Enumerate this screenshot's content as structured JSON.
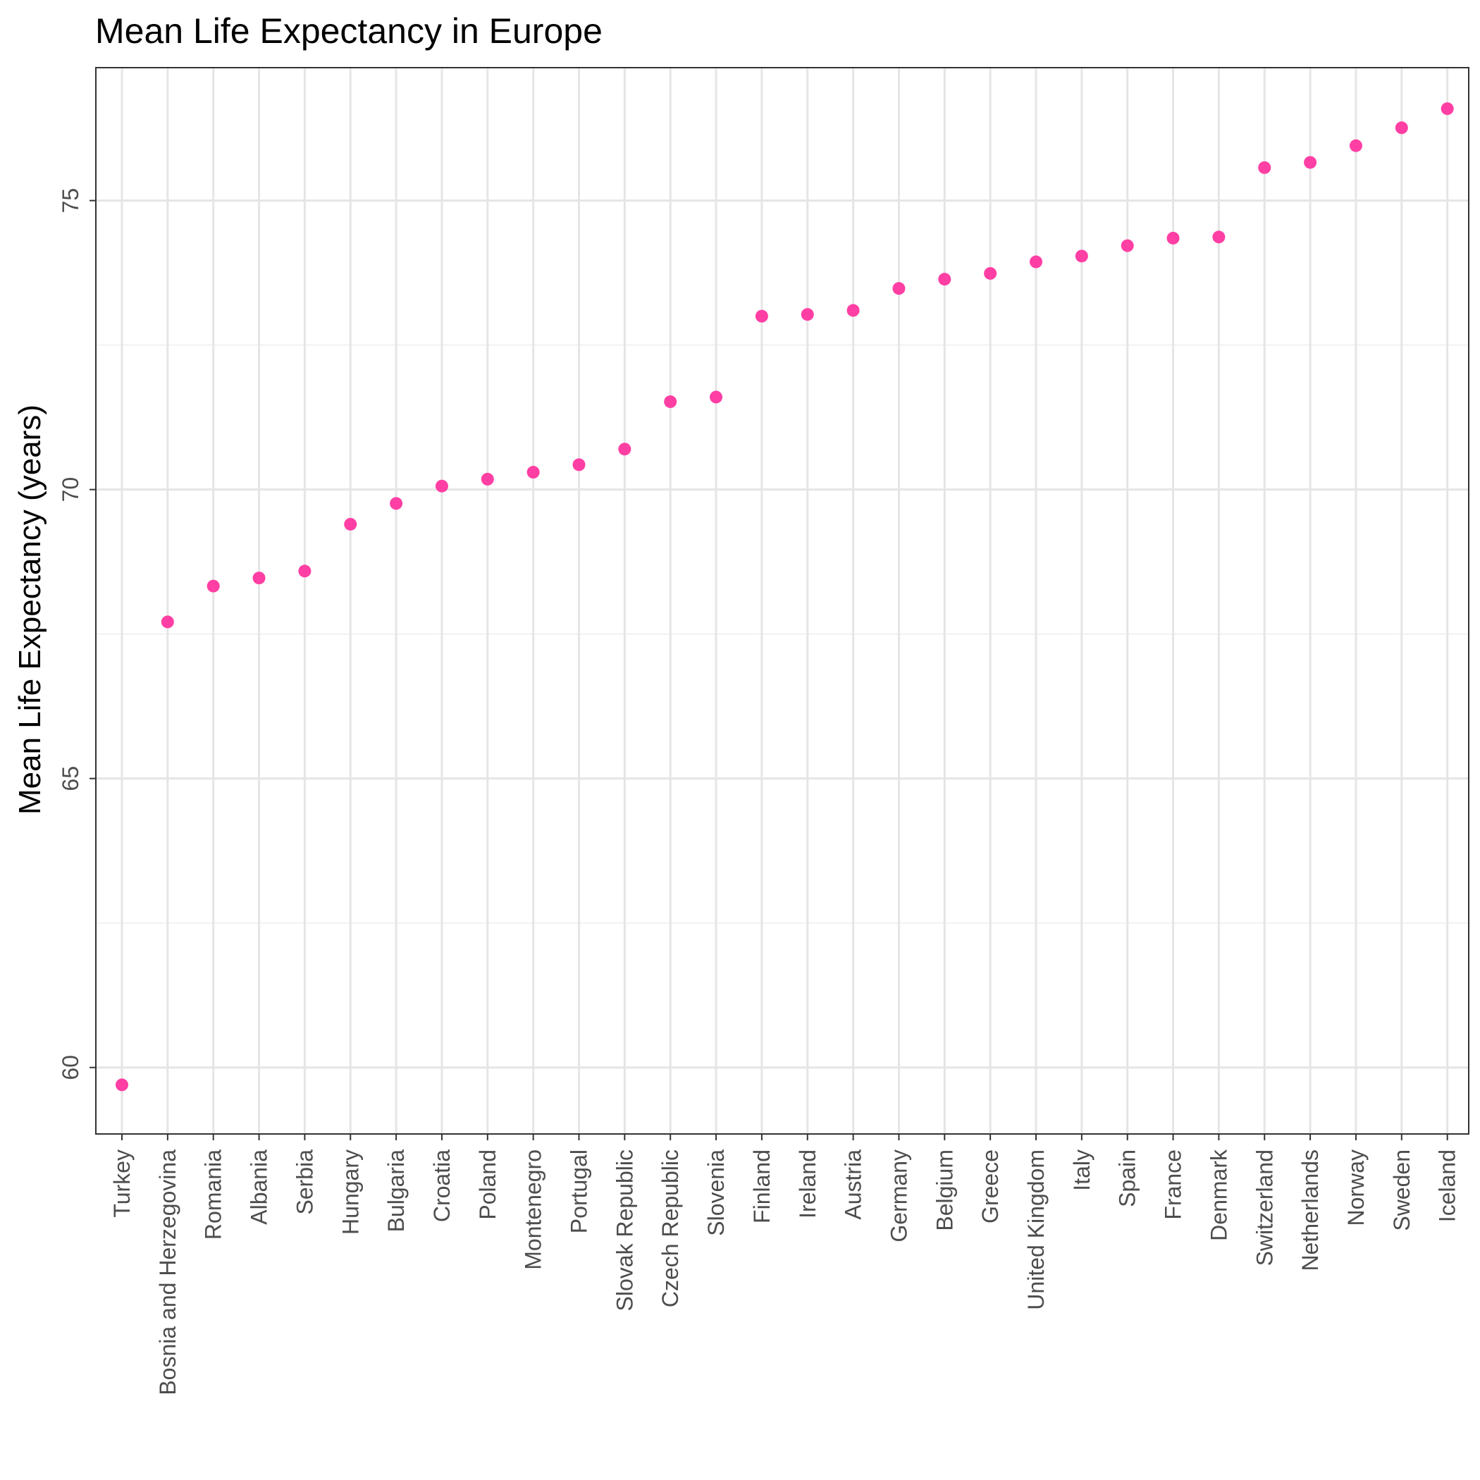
{
  "chart_data": {
    "type": "scatter",
    "title": "Mean Life Expectancy in Europe",
    "xlabel": "",
    "ylabel": "Mean Life Expectancy (years)",
    "ylim": [
      58.85,
      77.3
    ],
    "yticks": [
      60,
      65,
      70,
      75
    ],
    "grid": true,
    "point_color": "#ff3fa4",
    "categories": [
      "Turkey",
      "Bosnia and Herzegovina",
      "Romania",
      "Albania",
      "Serbia",
      "Hungary",
      "Bulgaria",
      "Croatia",
      "Poland",
      "Montenegro",
      "Portugal",
      "Slovak Republic",
      "Czech Republic",
      "Slovenia",
      "Finland",
      "Ireland",
      "Austria",
      "Germany",
      "Belgium",
      "Greece",
      "United Kingdom",
      "Italy",
      "Spain",
      "France",
      "Denmark",
      "Switzerland",
      "Netherlands",
      "Norway",
      "Sweden",
      "Iceland"
    ],
    "values": [
      59.7,
      67.71,
      68.33,
      68.47,
      68.59,
      69.4,
      69.76,
      70.06,
      70.18,
      70.3,
      70.43,
      70.7,
      71.52,
      71.6,
      73.0,
      73.03,
      73.1,
      73.48,
      73.64,
      73.74,
      73.94,
      74.04,
      74.22,
      74.35,
      74.37,
      75.57,
      75.66,
      75.95,
      76.26,
      76.59
    ]
  }
}
